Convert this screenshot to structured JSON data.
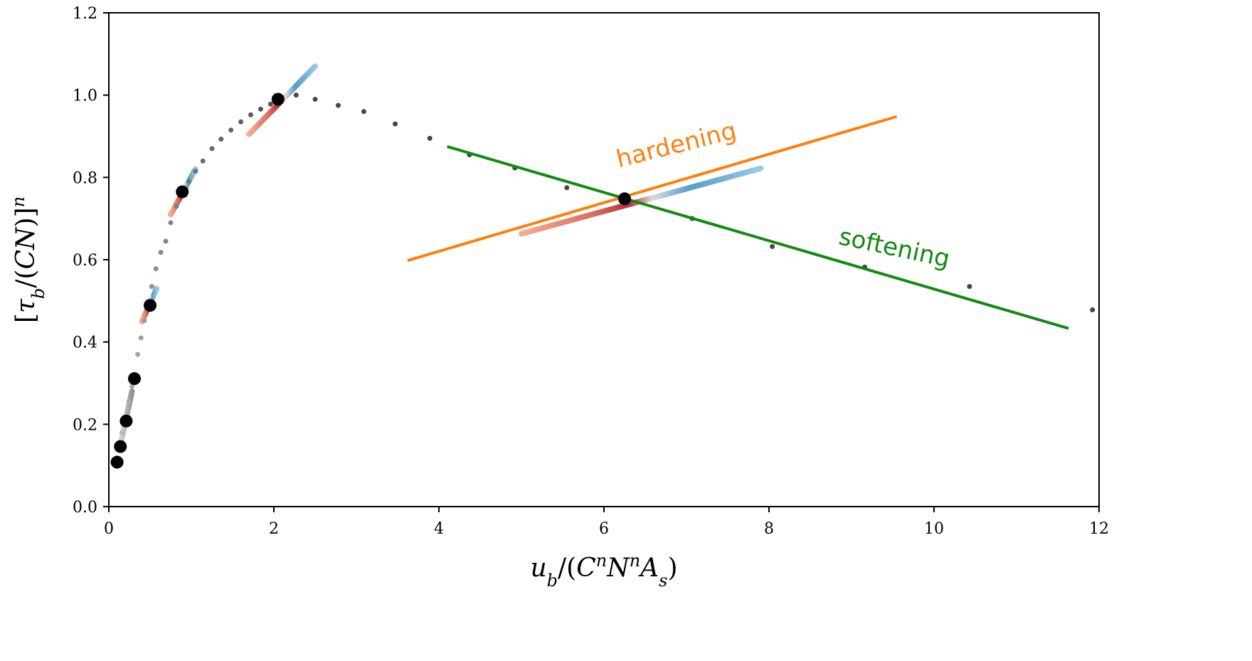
{
  "chart_data": {
    "type": "scatter",
    "title": "",
    "xlabel": "u_b/(C^n N^n A_s)",
    "ylabel": "[τ_b/(CN)]^n",
    "xlim": [
      0,
      12
    ],
    "ylim": [
      0,
      1.2
    ],
    "xticks": [
      "0",
      "2",
      "4",
      "6",
      "8",
      "10",
      "12"
    ],
    "yticks": [
      "0.0",
      "0.2",
      "0.4",
      "0.6",
      "0.8",
      "1.0",
      "1.2"
    ],
    "grid": false,
    "curve_points": {
      "x": [
        0.1,
        0.13,
        0.16,
        0.2,
        0.24,
        0.28,
        0.31,
        0.35,
        0.39,
        0.43,
        0.47,
        0.52,
        0.57,
        0.63,
        0.69,
        0.75,
        0.82,
        0.89,
        0.97,
        1.05,
        1.14,
        1.25,
        1.36,
        1.48,
        1.6,
        1.72,
        1.84,
        1.96,
        2.08,
        2.27,
        2.5,
        2.78,
        3.09,
        3.47,
        3.89,
        4.37,
        4.92,
        5.55,
        6.25,
        7.07,
        8.04,
        9.16,
        10.43,
        11.92
      ],
      "y": [
        0.108,
        0.146,
        0.18,
        0.208,
        0.255,
        0.292,
        0.311,
        0.37,
        0.41,
        0.452,
        0.489,
        0.535,
        0.578,
        0.618,
        0.645,
        0.69,
        0.73,
        0.765,
        0.79,
        0.815,
        0.84,
        0.87,
        0.893,
        0.915,
        0.935,
        0.952,
        0.966,
        0.978,
        0.99,
        1.0,
        0.99,
        0.975,
        0.96,
        0.93,
        0.895,
        0.855,
        0.823,
        0.775,
        0.748,
        0.7,
        0.632,
        0.582,
        0.535,
        0.478
      ]
    },
    "highlight_points": {
      "x": [
        0.1,
        0.14,
        0.21,
        0.31,
        0.5,
        0.89,
        2.05,
        6.25
      ],
      "y": [
        0.108,
        0.146,
        0.208,
        0.311,
        0.489,
        0.765,
        0.99,
        0.748
      ]
    },
    "tangent_segments": [
      {
        "x": [
          0.15,
          0.28
        ],
        "y": [
          0.16,
          0.28
        ]
      },
      {
        "x": [
          0.4,
          0.58
        ],
        "y": [
          0.45,
          0.53
        ]
      },
      {
        "x": [
          0.75,
          1.05
        ],
        "y": [
          0.71,
          0.82
        ]
      },
      {
        "x": [
          1.7,
          2.5
        ],
        "y": [
          0.905,
          1.07
        ]
      },
      {
        "x": [
          5.0,
          7.9
        ],
        "y": [
          0.663,
          0.822
        ]
      }
    ],
    "lines": [
      {
        "name": "hardening",
        "color": "#ff7f0e",
        "x": [
          3.62,
          9.55
        ],
        "y": [
          0.598,
          0.948
        ]
      },
      {
        "name": "softening",
        "color": "#138a13",
        "x": [
          4.1,
          11.63
        ],
        "y": [
          0.875,
          0.433
        ]
      }
    ],
    "annotations": [
      {
        "text": "hardening",
        "color": "#ff7f0e",
        "x": 6.9,
        "y": 0.86,
        "angle": -14
      },
      {
        "text": "softening",
        "color": "#138a13",
        "x": 9.5,
        "y": 0.61,
        "angle": 12
      }
    ]
  }
}
